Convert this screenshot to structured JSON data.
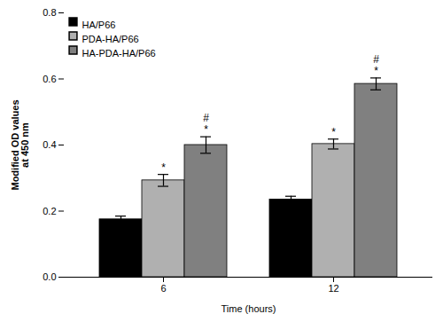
{
  "chart_data": {
    "type": "bar",
    "categories": [
      "6",
      "12"
    ],
    "series": [
      {
        "name": "HA/P66",
        "color": "#000000",
        "values": [
          0.175,
          0.235
        ],
        "errors": [
          0.01,
          0.01
        ]
      },
      {
        "name": "PDA-HA/P66",
        "color": "#b0b0b0",
        "values": [
          0.293,
          0.403
        ],
        "errors": [
          0.018,
          0.015
        ]
      },
      {
        "name": "HA-PDA-HA/P66",
        "color": "#808080",
        "values": [
          0.4,
          0.585
        ],
        "errors": [
          0.025,
          0.018
        ]
      }
    ],
    "xlabel": "Time (hours)",
    "ylabel": "Modified OD values\nat 450 nm",
    "ylim": [
      0.0,
      0.8
    ],
    "yticks": [
      {
        "value": 0.0,
        "label": "0.0"
      },
      0.2,
      0.4,
      0.6,
      0.8
    ],
    "grid": false,
    "legend": "upper left",
    "annotations": [
      {
        "text": "*",
        "category": "6",
        "series": "PDA-HA/P66"
      },
      {
        "text": "*",
        "category": "6",
        "series": "HA-PDA-HA/P66"
      },
      {
        "text": "#",
        "category": "6",
        "series": "HA-PDA-HA/P66"
      },
      {
        "text": "*",
        "category": "12",
        "series": "PDA-HA/P66"
      },
      {
        "text": "*",
        "category": "12",
        "series": "HA-PDA-HA/P66"
      },
      {
        "text": "#",
        "category": "12",
        "series": "HA-PDA-HA/P66"
      }
    ]
  }
}
